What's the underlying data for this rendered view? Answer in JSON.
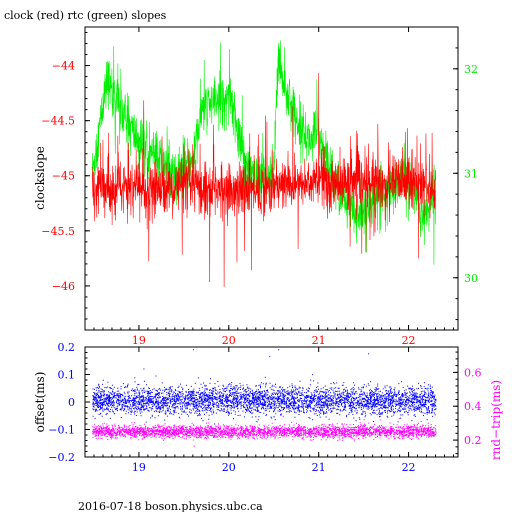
{
  "page": {
    "title": "clock (red) rtc (green) slopes",
    "footer": "2016-07-18 boson.physics.ubc.ca"
  },
  "colors": {
    "clock": "#ff0000",
    "rtc": "#00ee00",
    "offset": "#0000ff",
    "roundtrip": "#ff00ff",
    "axis": "#000000"
  },
  "chart_data": [
    {
      "type": "line",
      "title": "clock (red) rtc (green) slopes",
      "ylabel": "clockslope",
      "y2label": "",
      "xlim": [
        18.4,
        22.55
      ],
      "ylim": [
        -46.4,
        -43.65
      ],
      "y2lim": [
        29.5,
        32.4
      ],
      "xticks": [
        19,
        20,
        21,
        22
      ],
      "yticks": [
        -44,
        -44.5,
        -45,
        -45.5,
        -46
      ],
      "yticklabels": [
        "−44",
        "−44.5",
        "−45",
        "−45.5",
        "−46"
      ],
      "y2ticks": [
        32,
        31,
        30
      ],
      "grid": false,
      "series": [
        {
          "name": "clock",
          "axis": "left",
          "x_range": [
            18.48,
            22.3
          ],
          "points": 1500,
          "noise": 0.12,
          "spike": 0.45,
          "baseline": [
            [
              18.48,
              -45.1
            ],
            [
              19.0,
              -45.12
            ],
            [
              19.5,
              -45.1
            ],
            [
              20.0,
              -45.13
            ],
            [
              20.5,
              -45.1
            ],
            [
              21.0,
              -45.05
            ],
            [
              21.5,
              -45.08
            ],
            [
              22.0,
              -45.05
            ],
            [
              22.3,
              -45.1
            ]
          ]
        },
        {
          "name": "rtc",
          "axis": "right",
          "x_range": [
            18.48,
            22.3
          ],
          "points": 1500,
          "noise": 0.12,
          "spike": 0.3,
          "baseline": [
            [
              18.48,
              31.0
            ],
            [
              18.65,
              31.9
            ],
            [
              18.8,
              31.6
            ],
            [
              19.0,
              31.3
            ],
            [
              19.2,
              31.15
            ],
            [
              19.4,
              31.0
            ],
            [
              19.6,
              31.1
            ],
            [
              19.7,
              31.6
            ],
            [
              19.9,
              31.7
            ],
            [
              20.0,
              31.8
            ],
            [
              20.15,
              31.2
            ],
            [
              20.3,
              30.9
            ],
            [
              20.5,
              31.0
            ],
            [
              20.55,
              32.1
            ],
            [
              20.7,
              31.6
            ],
            [
              20.9,
              31.3
            ],
            [
              21.0,
              31.4
            ],
            [
              21.1,
              31.1
            ],
            [
              21.3,
              30.7
            ],
            [
              21.45,
              30.6
            ],
            [
              21.6,
              30.75
            ],
            [
              21.8,
              30.9
            ],
            [
              22.0,
              31.0
            ],
            [
              22.15,
              30.6
            ],
            [
              22.3,
              30.8
            ]
          ]
        }
      ]
    },
    {
      "type": "scatter",
      "ylabel": "offset(ms)",
      "y2label": "rnd−trip(ms)",
      "xlim": [
        18.4,
        22.55
      ],
      "ylim": [
        -0.2,
        0.2
      ],
      "y2lim": [
        0.1,
        0.75
      ],
      "xticks": [
        19,
        20,
        21,
        22
      ],
      "yticks": [
        0.2,
        0.1,
        0,
        -0.1,
        -0.2
      ],
      "yticklabels": [
        "0.2",
        "0.1",
        "0",
        "−0.1",
        "−0.2"
      ],
      "y2ticks": [
        0.6,
        0.4,
        0.2
      ],
      "grid": false,
      "series": [
        {
          "name": "offset",
          "axis": "left",
          "x_range": [
            18.48,
            22.3
          ],
          "points": 4500,
          "center": 0.005,
          "spread": 0.025,
          "outliers": [
            [
              19.6,
              0.19
            ],
            [
              20.45,
              0.165
            ],
            [
              20.55,
              0.19
            ],
            [
              21.55,
              0.175
            ],
            [
              19.05,
              0.12
            ],
            [
              20.4,
              0.09
            ]
          ]
        },
        {
          "name": "roundtrip",
          "axis": "right",
          "x_range": [
            18.48,
            22.3
          ],
          "points": 3500,
          "center": 0.25,
          "spread": 0.018,
          "outliers": [
            [
              19.45,
              0.33
            ],
            [
              20.3,
              0.31
            ],
            [
              20.6,
              0.34
            ],
            [
              21.5,
              0.32
            ]
          ]
        }
      ]
    }
  ]
}
